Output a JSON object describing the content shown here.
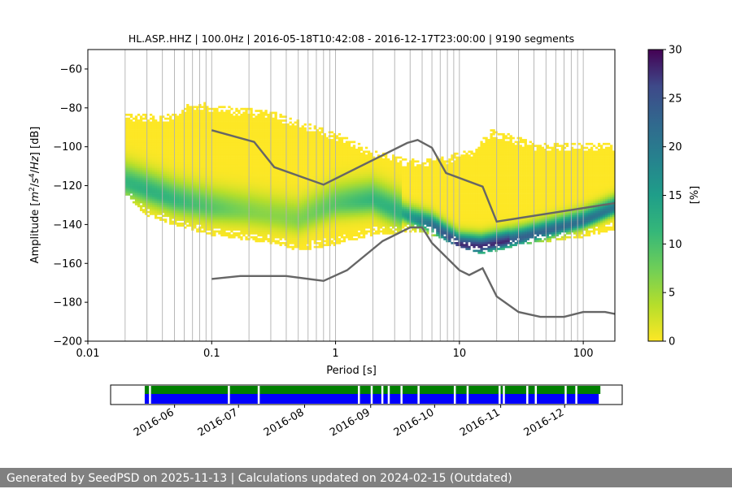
{
  "chart_data": [
    {
      "type": "heatmap",
      "title": "HL.ASP..HHZ | 100.0Hz | 2016-05-18T10:42:08 - 2016-12-17T23:00:00 | 9190 segments",
      "xlabel": "Period [s]",
      "ylabel_parts": [
        "Amplitude [",
        "m",
        "2",
        "/",
        "s",
        "4",
        "/",
        "Hz",
        "] [dB]"
      ],
      "xscale": "log",
      "xlim": [
        0.01,
        180
      ],
      "ylim": [
        -200,
        -50
      ],
      "xticks": [
        0.01,
        0.1,
        1,
        10,
        100
      ],
      "xtick_labels": [
        "0.01",
        "0.1",
        "1",
        "10",
        "100"
      ],
      "yticks": [
        -200,
        -180,
        -160,
        -140,
        -120,
        -100,
        -80,
        -60
      ],
      "ytick_labels": [
        "−200",
        "−180",
        "−160",
        "−140",
        "−120",
        "−100",
        "−80",
        "−60"
      ],
      "grid": "x-minor",
      "colorscale": "viridis_r",
      "colorbar": {
        "label": "[%]",
        "range": [
          0,
          30
        ],
        "ticks": [
          0,
          5,
          10,
          15,
          20,
          25,
          30
        ],
        "tick_labels": [
          "0",
          "5",
          "10",
          "15",
          "20",
          "25",
          "30"
        ]
      },
      "psd_envelope": {
        "period_range": [
          0.02,
          180
        ],
        "upper_db": [
          {
            "x": 0.02,
            "y": -82
          },
          {
            "x": 0.05,
            "y": -83
          },
          {
            "x": 0.07,
            "y": -76
          },
          {
            "x": 0.15,
            "y": -79
          },
          {
            "x": 0.3,
            "y": -81
          },
          {
            "x": 0.5,
            "y": -86
          },
          {
            "x": 1.0,
            "y": -92
          },
          {
            "x": 2.0,
            "y": -101
          },
          {
            "x": 4.0,
            "y": -106
          },
          {
            "x": 8.0,
            "y": -104
          },
          {
            "x": 13,
            "y": -100
          },
          {
            "x": 18,
            "y": -90
          },
          {
            "x": 40,
            "y": -97
          },
          {
            "x": 180,
            "y": -98
          }
        ],
        "lower_db": [
          {
            "x": 0.02,
            "y": -124
          },
          {
            "x": 0.03,
            "y": -135
          },
          {
            "x": 0.05,
            "y": -140
          },
          {
            "x": 0.1,
            "y": -145
          },
          {
            "x": 0.3,
            "y": -149
          },
          {
            "x": 0.5,
            "y": -153
          },
          {
            "x": 1.0,
            "y": -150
          },
          {
            "x": 2.0,
            "y": -145
          },
          {
            "x": 5.0,
            "y": -143
          },
          {
            "x": 10,
            "y": -151
          },
          {
            "x": 15,
            "y": -155
          },
          {
            "x": 30,
            "y": -150
          },
          {
            "x": 100,
            "y": -146
          },
          {
            "x": 180,
            "y": -142
          }
        ],
        "mode_db": [
          {
            "x": 0.02,
            "y": -118
          },
          {
            "x": 0.05,
            "y": -127
          },
          {
            "x": 0.1,
            "y": -131
          },
          {
            "x": 0.2,
            "y": -133
          },
          {
            "x": 0.5,
            "y": -137
          },
          {
            "x": 1.0,
            "y": -129
          },
          {
            "x": 2.0,
            "y": -127
          },
          {
            "x": 4.0,
            "y": -136
          },
          {
            "x": 6.0,
            "y": -140
          },
          {
            "x": 10,
            "y": -150
          },
          {
            "x": 15,
            "y": -151
          },
          {
            "x": 30,
            "y": -147
          },
          {
            "x": 100,
            "y": -138
          },
          {
            "x": 180,
            "y": -131
          }
        ]
      },
      "series": [
        {
          "points": [
            {
              "x": 0.1,
              "y": -91.5
            },
            {
              "x": 0.22,
              "y": -97.5
            },
            {
              "x": 0.32,
              "y": -110.5
            },
            {
              "x": 0.8,
              "y": -119.5
            },
            {
              "x": 3.8,
              "y": -98
            },
            {
              "x": 4.6,
              "y": -96.5
            },
            {
              "x": 6.0,
              "y": -100.5
            },
            {
              "x": 7.8,
              "y": -113.5
            },
            {
              "x": 15.4,
              "y": -120.5
            },
            {
              "x": 20,
              "y": -138.5
            },
            {
              "x": 180,
              "y": -129
            }
          ],
          "color": "#666666"
        },
        {
          "points": [
            {
              "x": 0.1,
              "y": -168
            },
            {
              "x": 0.17,
              "y": -166.5
            },
            {
              "x": 0.4,
              "y": -166.5
            },
            {
              "x": 0.8,
              "y": -169
            },
            {
              "x": 1.24,
              "y": -163.5
            },
            {
              "x": 2.4,
              "y": -148.5
            },
            {
              "x": 4.0,
              "y": -141.5
            },
            {
              "x": 5.0,
              "y": -141.5
            },
            {
              "x": 6.0,
              "y": -149.5
            },
            {
              "x": 10,
              "y": -163.5
            },
            {
              "x": 12,
              "y": -166
            },
            {
              "x": 15.4,
              "y": -162.5
            },
            {
              "x": 20,
              "y": -177
            },
            {
              "x": 30,
              "y": -185
            },
            {
              "x": 45,
              "y": -187.5
            },
            {
              "x": 70,
              "y": -187.5
            },
            {
              "x": 100,
              "y": -185
            },
            {
              "x": 150,
              "y": -185
            },
            {
              "x": 180,
              "y": -186
            }
          ],
          "color": "#666666"
        }
      ]
    },
    {
      "type": "timeline",
      "xrange": [
        "2016-05-02",
        "2016-12-28"
      ],
      "xtick_dates": [
        "2016-06-01",
        "2016-07-01",
        "2016-08-01",
        "2016-09-01",
        "2016-10-01",
        "2016-11-01",
        "2016-12-01"
      ],
      "xtick_labels": [
        "2016-06",
        "2016-07",
        "2016-08",
        "2016-09",
        "2016-10",
        "2016-11",
        "2016-12"
      ],
      "data_span": [
        "2016-05-18",
        "2016-12-17"
      ],
      "available_color": "#008000",
      "processed_color": "#0000ff",
      "gaps": [
        "2016-05-20",
        "2016-06-26",
        "2016-07-10",
        "2016-08-26",
        "2016-09-01",
        "2016-09-06",
        "2016-09-09",
        "2016-09-15",
        "2016-09-23",
        "2016-10-10",
        "2016-10-16",
        "2016-10-31",
        "2016-11-02",
        "2016-11-13",
        "2016-11-17",
        "2016-12-01",
        "2016-12-06"
      ]
    }
  ],
  "footer": {
    "text": "Generated by SeedPSD on 2025-11-13 | Calculations updated on 2024-02-15 (Outdated)"
  }
}
